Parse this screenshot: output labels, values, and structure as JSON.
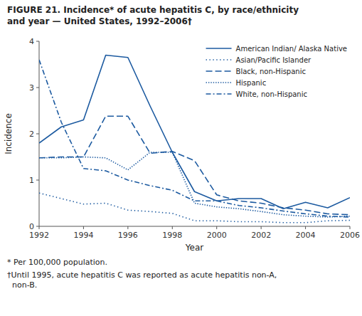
{
  "chart_data": {
    "type": "line",
    "title": "FIGURE 21. Incidence* of acute hepatitis C, by race/ethnicity\nand year — United States, 1992–2006†",
    "x_label": "Year",
    "y_label": "Incidence",
    "annotations": [
      "* Per 100,000 population.",
      "†Until 1995, acute hepatitis C was reported as acute hepatitis non-A,\n  non-B."
    ],
    "x": [
      1992,
      1993,
      1994,
      1995,
      1996,
      1997,
      1998,
      1999,
      2000,
      2001,
      2002,
      2003,
      2004,
      2005,
      2006
    ],
    "series": [
      {
        "name": "American Indian/ Alaska Native",
        "color": "#1c5aa0",
        "line_style": "solid",
        "values": [
          1.8,
          2.15,
          2.3,
          3.7,
          3.65,
          2.6,
          1.6,
          0.75,
          0.55,
          0.6,
          0.6,
          0.38,
          0.52,
          0.4,
          0.62
        ]
      },
      {
        "name": "Asian/Pacific Islander",
        "color": "#1c5aa0",
        "line_style": "dotted",
        "values": [
          0.72,
          0.6,
          0.48,
          0.5,
          0.35,
          0.32,
          0.28,
          0.12,
          0.12,
          0.1,
          0.1,
          0.08,
          0.08,
          0.12,
          0.13
        ]
      },
      {
        "name": "Black, non-Hispanic",
        "color": "#1c5aa0",
        "line_style": "dashed",
        "values": [
          1.48,
          1.5,
          1.5,
          2.38,
          2.38,
          1.58,
          1.62,
          1.42,
          0.68,
          0.55,
          0.5,
          0.4,
          0.35,
          0.27,
          0.25
        ]
      },
      {
        "name": "Hispanic",
        "color": "#1c5aa0",
        "line_style": "densely-dotted",
        "values": [
          1.48,
          1.48,
          1.5,
          1.48,
          1.22,
          1.6,
          1.6,
          0.5,
          0.42,
          0.38,
          0.32,
          0.25,
          0.22,
          0.2,
          0.22
        ]
      },
      {
        "name": "White, non-Hispanic",
        "color": "#1c5aa0",
        "line_style": "dash-dot",
        "values": [
          3.6,
          2.25,
          1.25,
          1.2,
          1.0,
          0.88,
          0.78,
          0.55,
          0.55,
          0.45,
          0.4,
          0.33,
          0.27,
          0.22,
          0.2
        ]
      }
    ],
    "xlim": [
      1992,
      2006
    ],
    "xticks": [
      1992,
      1994,
      1996,
      1998,
      2000,
      2002,
      2004,
      2006
    ],
    "ylim": [
      0,
      4
    ],
    "yticks": [
      0,
      1,
      2,
      3,
      4
    ],
    "grid": false,
    "legend": "upper right"
  }
}
